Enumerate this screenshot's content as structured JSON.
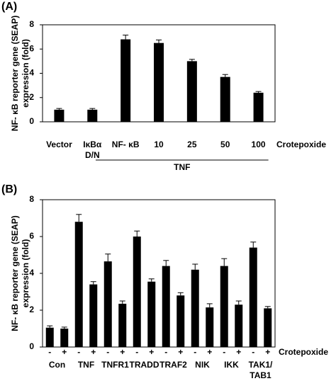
{
  "chart_data": [
    {
      "type": "bar",
      "panel": "(A)",
      "y_label": [
        "NF- κB reporter gene (SEAP)",
        "expression (fold)"
      ],
      "categories": [
        "Vector",
        [
          "IκBα",
          "D/N"
        ],
        "NF- κB",
        "10",
        "25",
        "50",
        "100"
      ],
      "values": [
        1.0,
        1.0,
        6.8,
        6.5,
        5.0,
        3.7,
        2.4
      ],
      "errors": [
        0.1,
        0.1,
        0.35,
        0.25,
        0.15,
        0.2,
        0.1
      ],
      "color": "#000000",
      "ylim": [
        0,
        8
      ],
      "yticks": [
        0,
        2,
        4,
        6,
        8
      ],
      "annotation": "Crotepoxide",
      "group_label": "TNF"
    },
    {
      "type": "grouped_bar",
      "panel": "(B)",
      "y_label": [
        "NF- κB reporter gene (SEAP)",
        "expression (fold)"
      ],
      "categories": [
        "Con",
        "TNF",
        "TNFR1",
        "TRADD",
        "TRAF2",
        "NIK",
        "IKK",
        [
          "TAK1/",
          "TAB1"
        ]
      ],
      "series": [
        {
          "name": "-",
          "color": "#000000",
          "values": [
            1.05,
            6.8,
            4.65,
            6.0,
            4.4,
            4.2,
            4.4,
            5.4
          ],
          "errors": [
            0.1,
            0.4,
            0.4,
            0.3,
            0.3,
            0.3,
            0.4,
            0.3
          ]
        },
        {
          "name": "+",
          "color": "#000000",
          "values": [
            1.0,
            3.4,
            2.35,
            3.55,
            2.8,
            2.15,
            2.3,
            2.1
          ],
          "errors": [
            0.08,
            0.15,
            0.15,
            0.15,
            0.15,
            0.2,
            0.2,
            0.1
          ]
        }
      ],
      "ylim": [
        0,
        8
      ],
      "yticks": [
        0,
        2,
        4,
        6,
        8
      ],
      "annotation": "Crotepoxide"
    }
  ]
}
